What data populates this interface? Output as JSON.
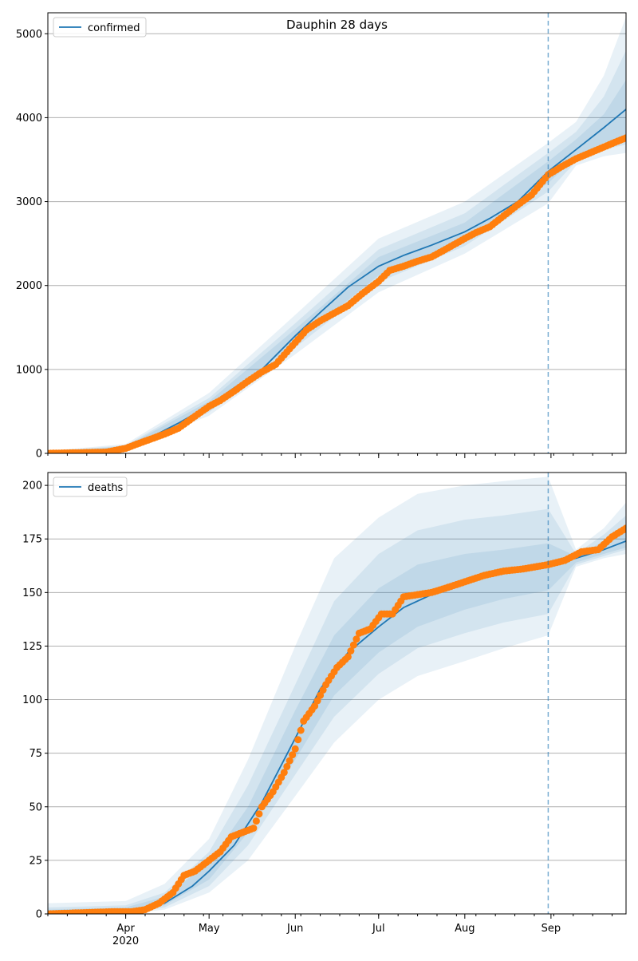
{
  "chart_data": [
    {
      "type": "line",
      "title": "Dauphin 28 days",
      "xlabel": "",
      "ylabel": "",
      "x_axis": {
        "range": [
          "2020-03-04",
          "2020-09-28"
        ],
        "tick_labels": [
          "Apr",
          "May",
          "Jun",
          "Jul",
          "Aug",
          "Sep"
        ],
        "tick_dates": [
          "2020-04-01",
          "2020-05-01",
          "2020-06-01",
          "2020-07-01",
          "2020-08-01",
          "2020-09-01"
        ],
        "year_label": "2020"
      },
      "ylim": [
        0,
        5250
      ],
      "yticks": [
        0,
        1000,
        2000,
        3000,
        4000,
        5000
      ],
      "grid": "horizontal",
      "legend": "top-left",
      "forecast_start": "2020-08-31",
      "series": [
        {
          "name": "confirmed",
          "kind": "model-line",
          "color": "#1f77b4",
          "x": [
            "2020-03-04",
            "2020-03-25",
            "2020-04-01",
            "2020-04-10",
            "2020-04-20",
            "2020-05-01",
            "2020-05-10",
            "2020-05-20",
            "2020-06-01",
            "2020-06-10",
            "2020-06-20",
            "2020-07-01",
            "2020-07-10",
            "2020-07-20",
            "2020-08-01",
            "2020-08-10",
            "2020-08-20",
            "2020-08-31",
            "2020-09-10",
            "2020-09-20",
            "2020-09-28"
          ],
          "y": [
            0,
            15,
            70,
            190,
            360,
            570,
            780,
            1000,
            1400,
            1680,
            1980,
            2230,
            2360,
            2480,
            2640,
            2800,
            3000,
            3360,
            3620,
            3880,
            4100
          ]
        },
        {
          "name": "",
          "kind": "observed-points",
          "color": "#ff7f0e",
          "x": [
            "2020-03-04",
            "2020-03-25",
            "2020-04-01",
            "2020-04-05",
            "2020-04-10",
            "2020-04-15",
            "2020-04-20",
            "2020-04-25",
            "2020-05-01",
            "2020-05-05",
            "2020-05-10",
            "2020-05-15",
            "2020-05-20",
            "2020-05-25",
            "2020-06-01",
            "2020-06-05",
            "2020-06-10",
            "2020-06-15",
            "2020-06-20",
            "2020-06-25",
            "2020-07-01",
            "2020-07-05",
            "2020-07-10",
            "2020-07-15",
            "2020-07-20",
            "2020-07-25",
            "2020-08-01",
            "2020-08-05",
            "2020-08-10",
            "2020-08-15",
            "2020-08-20",
            "2020-08-25",
            "2020-08-31",
            "2020-09-05",
            "2020-09-10",
            "2020-09-15",
            "2020-09-20",
            "2020-09-25",
            "2020-09-28"
          ],
          "y": [
            0,
            15,
            60,
            110,
            170,
            230,
            300,
            420,
            560,
            630,
            740,
            860,
            970,
            1060,
            1320,
            1470,
            1580,
            1670,
            1760,
            1900,
            2050,
            2180,
            2230,
            2290,
            2340,
            2430,
            2560,
            2630,
            2700,
            2830,
            2960,
            3080,
            3320,
            3420,
            3510,
            3580,
            3650,
            3720,
            3760
          ]
        }
      ],
      "bands": [
        {
          "x": [
            "2020-03-04",
            "2020-04-01",
            "2020-05-01",
            "2020-06-01",
            "2020-07-01",
            "2020-08-01",
            "2020-08-31",
            "2020-09-10",
            "2020-09-20",
            "2020-09-28"
          ],
          "lower": [
            0,
            40,
            450,
            1180,
            1920,
            2380,
            2980,
            3430,
            3540,
            3580
          ],
          "upper": [
            30,
            110,
            720,
            1650,
            2560,
            3000,
            3700,
            3950,
            4500,
            5200
          ]
        },
        {
          "x": [
            "2020-03-04",
            "2020-04-01",
            "2020-05-01",
            "2020-06-01",
            "2020-07-01",
            "2020-08-01",
            "2020-08-31",
            "2020-09-10",
            "2020-09-20",
            "2020-09-28"
          ],
          "lower": [
            0,
            50,
            490,
            1260,
            2040,
            2470,
            3120,
            3480,
            3620,
            3680
          ],
          "upper": [
            22,
            95,
            660,
            1550,
            2430,
            2860,
            3580,
            3830,
            4250,
            4800
          ]
        },
        {
          "x": [
            "2020-03-04",
            "2020-04-01",
            "2020-05-01",
            "2020-06-01",
            "2020-07-01",
            "2020-08-01",
            "2020-08-31",
            "2020-09-10",
            "2020-09-20",
            "2020-09-28"
          ],
          "lower": [
            0,
            58,
            520,
            1320,
            2120,
            2540,
            3220,
            3530,
            3700,
            3790
          ],
          "upper": [
            15,
            85,
            620,
            1480,
            2340,
            2750,
            3480,
            3740,
            4040,
            4450
          ]
        }
      ]
    },
    {
      "type": "line",
      "title": "",
      "xlabel": "",
      "ylabel": "",
      "x_axis": {
        "range": [
          "2020-03-04",
          "2020-09-28"
        ],
        "tick_labels": [
          "Apr",
          "May",
          "Jun",
          "Jul",
          "Aug",
          "Sep"
        ],
        "tick_dates": [
          "2020-04-01",
          "2020-05-01",
          "2020-06-01",
          "2020-07-01",
          "2020-08-01",
          "2020-09-01"
        ],
        "year_label": "2020"
      },
      "ylim": [
        0,
        206
      ],
      "yticks": [
        0,
        25,
        50,
        75,
        100,
        125,
        150,
        175,
        200
      ],
      "grid": "horizontal",
      "legend": "top-left",
      "forecast_start": "2020-08-31",
      "series": [
        {
          "name": "deaths",
          "kind": "model-line",
          "color": "#1f77b4",
          "x": [
            "2020-03-04",
            "2020-03-25",
            "2020-04-05",
            "2020-04-15",
            "2020-04-25",
            "2020-05-01",
            "2020-05-10",
            "2020-05-20",
            "2020-06-01",
            "2020-06-10",
            "2020-06-20",
            "2020-07-01",
            "2020-07-10",
            "2020-07-20",
            "2020-08-01",
            "2020-08-10",
            "2020-08-20",
            "2020-08-31",
            "2020-09-10",
            "2020-09-20",
            "2020-09-28"
          ],
          "y": [
            0,
            0,
            1,
            5,
            13,
            20,
            32,
            52,
            82,
            105,
            122,
            134,
            143,
            149,
            155,
            158,
            161,
            163,
            166,
            170,
            174
          ]
        },
        {
          "name": "",
          "kind": "observed-points",
          "color": "#ff7f0e",
          "x": [
            "2020-03-04",
            "2020-03-27",
            "2020-04-03",
            "2020-04-08",
            "2020-04-13",
            "2020-04-18",
            "2020-04-22",
            "2020-04-26",
            "2020-05-01",
            "2020-05-05",
            "2020-05-09",
            "2020-05-13",
            "2020-05-17",
            "2020-05-20",
            "2020-05-24",
            "2020-05-28",
            "2020-06-01",
            "2020-06-04",
            "2020-06-08",
            "2020-06-12",
            "2020-06-16",
            "2020-06-20",
            "2020-06-24",
            "2020-06-28",
            "2020-07-02",
            "2020-07-06",
            "2020-07-10",
            "2020-07-15",
            "2020-07-20",
            "2020-07-25",
            "2020-08-01",
            "2020-08-08",
            "2020-08-15",
            "2020-08-22",
            "2020-08-31",
            "2020-09-06",
            "2020-09-12",
            "2020-09-18",
            "2020-09-23",
            "2020-09-28"
          ],
          "y": [
            0,
            1,
            1,
            2,
            5,
            10,
            18,
            20,
            25,
            29,
            36,
            38,
            40,
            50,
            57,
            66,
            77,
            90,
            97,
            107,
            115,
            120,
            131,
            133,
            140,
            140,
            148,
            149,
            150,
            152,
            155,
            158,
            160,
            161,
            163,
            165,
            169,
            170,
            176,
            180
          ]
        }
      ],
      "bands": [
        {
          "x": [
            "2020-03-04",
            "2020-04-01",
            "2020-04-15",
            "2020-05-01",
            "2020-05-15",
            "2020-06-01",
            "2020-06-15",
            "2020-07-01",
            "2020-07-15",
            "2020-08-01",
            "2020-08-15",
            "2020-08-31",
            "2020-09-10",
            "2020-09-20",
            "2020-09-28"
          ],
          "lower": [
            0,
            0,
            2,
            10,
            25,
            55,
            80,
            100,
            111,
            118,
            124,
            130,
            162,
            166,
            168
          ],
          "upper": [
            5,
            6,
            14,
            35,
            72,
            125,
            166,
            185,
            196,
            200,
            202,
            204,
            170,
            180,
            192
          ]
        },
        {
          "x": [
            "2020-03-04",
            "2020-04-01",
            "2020-04-15",
            "2020-05-01",
            "2020-05-15",
            "2020-06-01",
            "2020-06-15",
            "2020-07-01",
            "2020-07-15",
            "2020-08-01",
            "2020-08-15",
            "2020-08-31",
            "2020-09-10",
            "2020-09-20",
            "2020-09-28"
          ],
          "lower": [
            0,
            0,
            3,
            13,
            32,
            65,
            92,
            112,
            124,
            131,
            136,
            140,
            163,
            167,
            170
          ],
          "upper": [
            3,
            4,
            10,
            29,
            60,
            107,
            146,
            168,
            179,
            184,
            186,
            189,
            168,
            177,
            186
          ]
        },
        {
          "x": [
            "2020-03-04",
            "2020-04-01",
            "2020-04-15",
            "2020-05-01",
            "2020-05-15",
            "2020-06-01",
            "2020-06-15",
            "2020-07-01",
            "2020-07-15",
            "2020-08-01",
            "2020-08-15",
            "2020-08-31",
            "2020-09-10",
            "2020-09-20",
            "2020-09-28"
          ],
          "lower": [
            0,
            0,
            4,
            16,
            38,
            72,
            102,
            122,
            134,
            142,
            147,
            151,
            164,
            168,
            171
          ],
          "upper": [
            2,
            3,
            8,
            24,
            50,
            95,
            130,
            152,
            163,
            168,
            170,
            173,
            167,
            174,
            181
          ]
        }
      ]
    }
  ]
}
